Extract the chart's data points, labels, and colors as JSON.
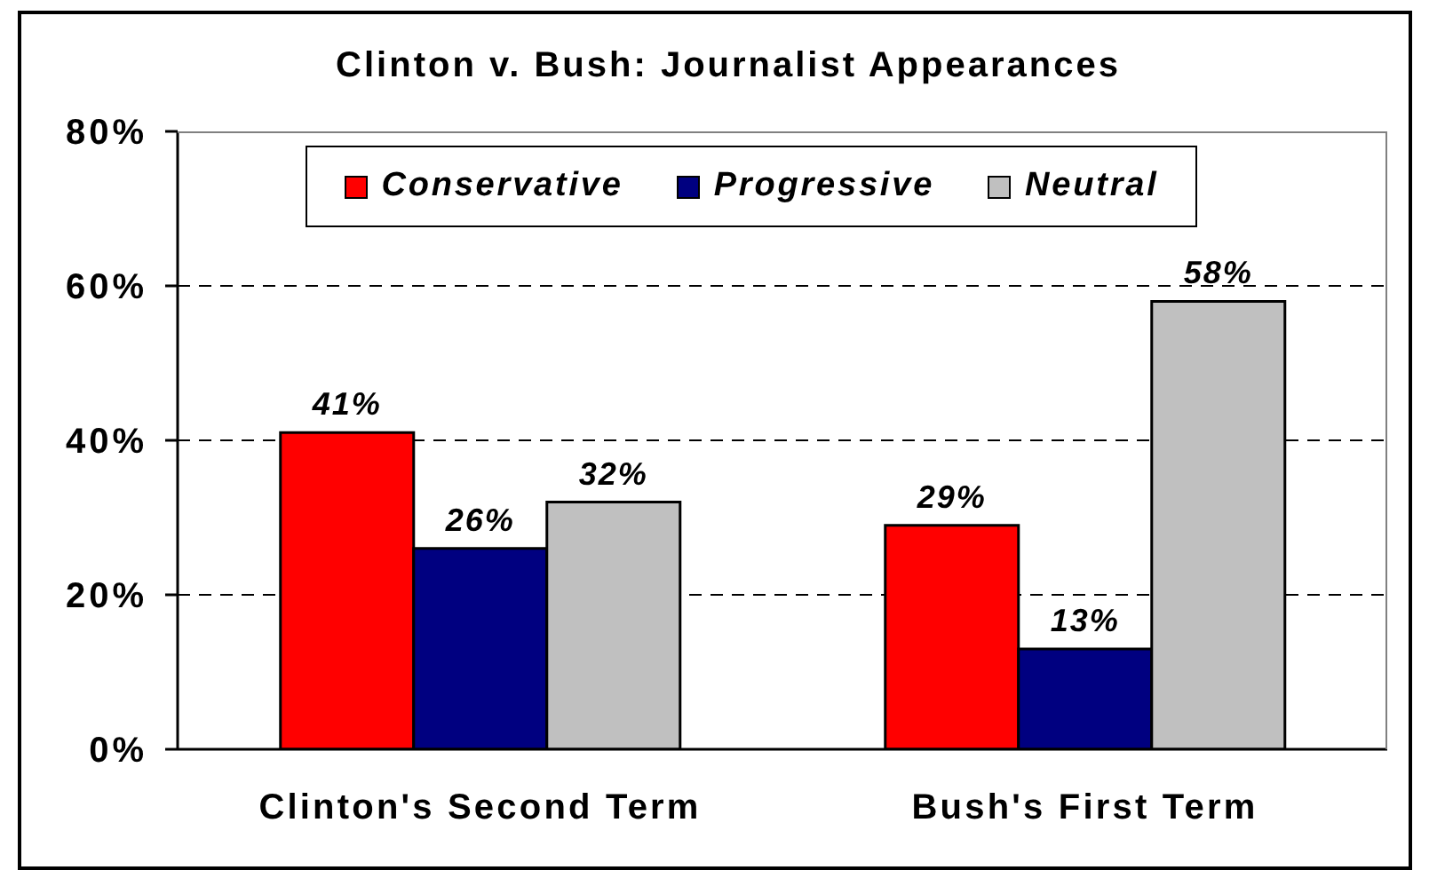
{
  "chart_data": {
    "type": "bar",
    "title": "Clinton v. Bush: Journalist Appearances",
    "categories": [
      "Clinton's Second Term",
      "Bush's First Term"
    ],
    "series": [
      {
        "name": "Conservative",
        "color": "#ff0000",
        "values": [
          41,
          29
        ],
        "value_labels": [
          "41%",
          "29%"
        ]
      },
      {
        "name": "Progressive",
        "color": "#000080",
        "values": [
          26,
          13
        ],
        "value_labels": [
          "26%",
          "13%"
        ]
      },
      {
        "name": "Neutral",
        "color": "#c0c0c0",
        "values": [
          32,
          58
        ],
        "value_labels": [
          "32%",
          "58%"
        ]
      }
    ],
    "ylim": [
      0,
      80
    ],
    "yticks": [
      {
        "value": 0,
        "label": "0%"
      },
      {
        "value": 20,
        "label": "20%"
      },
      {
        "value": 40,
        "label": "40%"
      },
      {
        "value": 60,
        "label": "60%"
      },
      {
        "value": 80,
        "label": "80%"
      }
    ],
    "grid": "y",
    "legend": "top"
  }
}
